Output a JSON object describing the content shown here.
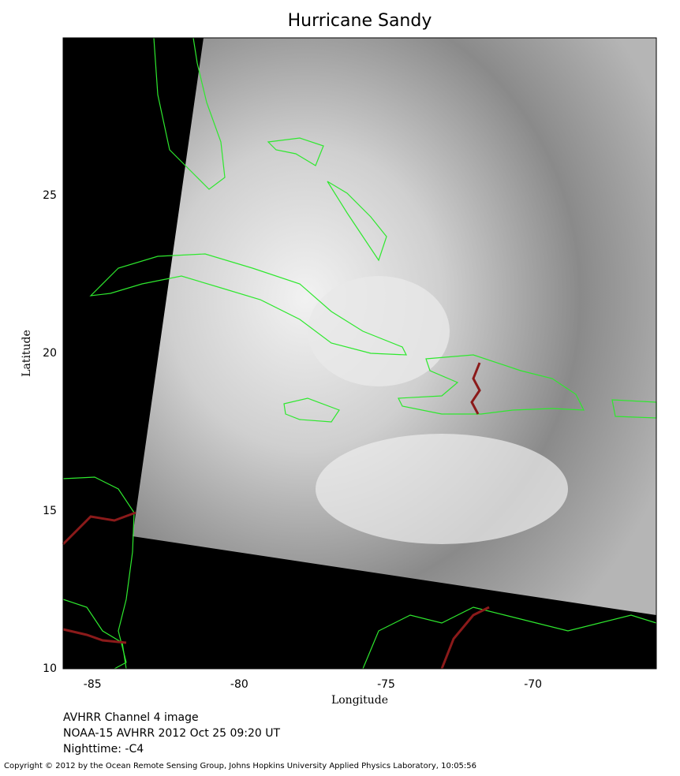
{
  "chart_data": {
    "type": "map",
    "title": "Hurricane Sandy",
    "xlabel": "Longitude",
    "ylabel": "Latitude",
    "xlim": [
      -86,
      -65.8
    ],
    "ylim": [
      10,
      30
    ],
    "xticks": [
      -85,
      -80,
      -75,
      -70
    ],
    "yticks": [
      10,
      15,
      20,
      25
    ],
    "notes": [
      "AVHRR Channel 4 image",
      "NOAA-15 AVHRR 2012 Oct 25 09:20 UT",
      "Nighttime: -C4"
    ],
    "copyright": "Copyright © 2012 by the Ocean Remote Sensing Group, Johns Hopkins University Applied Physics Laboratory, 10:05:56"
  }
}
